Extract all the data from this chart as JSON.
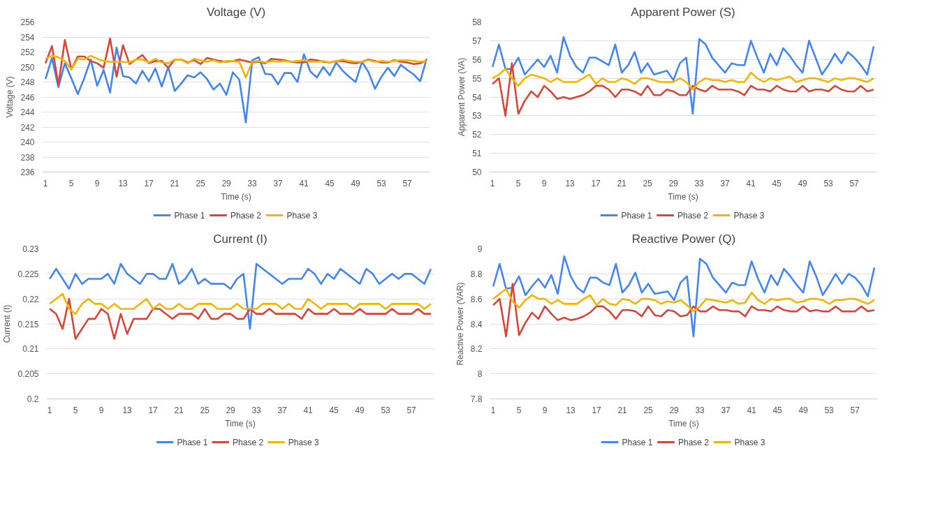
{
  "chart_data": [
    {
      "type": "line",
      "title": "Voltage (V)",
      "xlabel": "Time (s)",
      "ylabel": "Voltage (V)",
      "grid": "y",
      "legend": "bottom",
      "ylim": [
        236,
        256
      ],
      "yticks": [
        236,
        238,
        240,
        242,
        244,
        246,
        248,
        250,
        252,
        254,
        256
      ],
      "categories": [
        "1",
        null,
        null,
        null,
        "5",
        null,
        null,
        null,
        "9",
        null,
        null,
        null,
        "13",
        null,
        null,
        null,
        "17",
        null,
        null,
        null,
        "21",
        null,
        null,
        null,
        "25",
        null,
        null,
        null,
        "29",
        null,
        null,
        null,
        "33",
        null,
        null,
        null,
        "37",
        null,
        null,
        null,
        "41",
        null,
        null,
        null,
        "45",
        null,
        null,
        null,
        "49",
        null,
        null,
        null,
        "53",
        null,
        null,
        null,
        "57",
        null,
        null,
        null
      ],
      "series": [
        {
          "name": "Phase 1",
          "color": "#4285f4",
          "values": [
            248.4,
            251.2,
            247.3,
            250.5,
            248.5,
            246.4,
            248.5,
            251.0,
            247.5,
            249.6,
            246.6,
            252.6,
            248.8,
            248.6,
            247.8,
            249.5,
            248.1,
            249.8,
            247.4,
            250.0,
            246.8,
            247.8,
            248.9,
            248.6,
            249.3,
            248.4,
            247.0,
            247.8,
            246.3,
            249.3,
            248.3,
            242.6,
            250.9,
            251.3,
            249.1,
            249.0,
            247.7,
            249.2,
            249.2,
            248.0,
            251.7,
            249.4,
            248.6,
            250.0,
            248.9,
            250.6,
            249.5,
            248.7,
            248.0,
            250.7,
            249.3,
            247.1,
            248.7,
            249.9,
            248.8,
            250.3,
            249.6,
            249.0,
            248.1,
            251.1
          ]
        },
        {
          "name": "Phase 2",
          "color": "#db4437",
          "values": [
            250.5,
            252.8,
            247.6,
            253.6,
            249.7,
            251.4,
            251.4,
            250.8,
            250.5,
            249.9,
            253.8,
            248.7,
            252.9,
            250.4,
            251.0,
            251.6,
            250.5,
            250.8,
            250.8,
            249.9,
            251.0,
            251.0,
            250.6,
            250.9,
            250.4,
            251.2,
            251.0,
            250.8,
            250.7,
            250.8,
            251.0,
            250.8,
            250.6,
            250.7,
            250.5,
            251.1,
            251.0,
            250.9,
            250.7,
            250.6,
            250.6,
            251.0,
            250.9,
            250.7,
            250.6,
            250.8,
            250.8,
            250.6,
            250.5,
            250.7,
            251.0,
            250.8,
            250.6,
            250.6,
            250.9,
            250.7,
            250.6,
            250.4,
            250.5,
            250.9
          ]
        },
        {
          "name": "Phase 3",
          "color": "#f4b400",
          "values": [
            251.1,
            251.5,
            251.3,
            250.8,
            249.7,
            251.1,
            251.0,
            251.5,
            251.1,
            250.8,
            250.7,
            250.7,
            250.7,
            250.6,
            251.0,
            251.0,
            250.6,
            251.1,
            250.6,
            250.5,
            251.0,
            251.0,
            250.5,
            251.1,
            250.9,
            250.7,
            250.9,
            250.6,
            250.8,
            250.8,
            250.7,
            248.6,
            250.7,
            250.8,
            250.6,
            250.8,
            250.7,
            250.8,
            250.7,
            250.8,
            250.9,
            250.7,
            250.7,
            250.8,
            250.6,
            250.8,
            251.0,
            250.8,
            250.7,
            250.7,
            250.9,
            250.7,
            250.8,
            250.7,
            250.8,
            250.9,
            250.9,
            250.8,
            250.7,
            250.8
          ]
        }
      ]
    },
    {
      "type": "line",
      "title": "Apparent Power (S)",
      "xlabel": "Time (s)",
      "ylabel": "Apparent Power (VA)",
      "grid": "y",
      "legend": "bottom",
      "ylim": [
        50,
        58
      ],
      "yticks": [
        50,
        51,
        52,
        53,
        54,
        55,
        56,
        57,
        58
      ],
      "categories": [
        "1",
        null,
        null,
        null,
        "5",
        null,
        null,
        null,
        "9",
        null,
        null,
        null,
        "13",
        null,
        null,
        null,
        "17",
        null,
        null,
        null,
        "21",
        null,
        null,
        null,
        "25",
        null,
        null,
        null,
        "29",
        null,
        null,
        null,
        "33",
        null,
        null,
        null,
        "37",
        null,
        null,
        null,
        "41",
        null,
        null,
        null,
        "45",
        null,
        null,
        null,
        "49",
        null,
        null,
        null,
        "53",
        null,
        null,
        null,
        "57",
        null,
        null,
        null
      ],
      "series": [
        {
          "name": "Phase 1",
          "color": "#4285f4",
          "values": [
            55.6,
            56.8,
            55.5,
            55.5,
            56.1,
            55.2,
            55.6,
            56.0,
            55.6,
            56.2,
            55.3,
            57.2,
            56.2,
            55.6,
            55.3,
            56.1,
            56.1,
            55.9,
            55.7,
            56.8,
            55.3,
            55.7,
            56.4,
            55.3,
            55.8,
            55.2,
            55.3,
            55.4,
            54.9,
            55.8,
            56.1,
            53.1,
            57.1,
            56.8,
            56.1,
            55.7,
            55.3,
            55.8,
            55.7,
            55.7,
            57.0,
            56.1,
            55.3,
            56.3,
            55.7,
            56.6,
            56.2,
            55.7,
            55.3,
            57.0,
            56.1,
            55.2,
            55.7,
            56.3,
            55.8,
            56.4,
            56.1,
            55.7,
            55.2,
            56.7
          ]
        },
        {
          "name": "Phase 2",
          "color": "#db4437",
          "values": [
            54.7,
            55.0,
            53.0,
            55.8,
            53.1,
            53.8,
            54.3,
            54.0,
            54.6,
            54.3,
            53.9,
            54.0,
            53.9,
            54.0,
            54.1,
            54.3,
            54.6,
            54.6,
            54.4,
            54.0,
            54.4,
            54.4,
            54.3,
            54.1,
            54.6,
            54.1,
            54.1,
            54.4,
            54.3,
            54.1,
            54.1,
            54.6,
            54.4,
            54.3,
            54.6,
            54.4,
            54.4,
            54.4,
            54.3,
            54.1,
            54.6,
            54.4,
            54.4,
            54.3,
            54.6,
            54.4,
            54.3,
            54.3,
            54.6,
            54.3,
            54.4,
            54.4,
            54.3,
            54.6,
            54.4,
            54.3,
            54.3,
            54.6,
            54.3,
            54.4
          ]
        },
        {
          "name": "Phase 3",
          "color": "#f4b400",
          "values": [
            55.0,
            55.2,
            55.5,
            55.0,
            54.6,
            55.0,
            55.2,
            55.1,
            55.0,
            54.8,
            55.0,
            54.8,
            54.8,
            54.8,
            55.0,
            55.2,
            54.7,
            55.0,
            54.8,
            54.8,
            55.0,
            54.9,
            54.7,
            55.0,
            55.0,
            54.9,
            54.8,
            54.8,
            54.8,
            55.0,
            54.8,
            54.4,
            54.8,
            55.0,
            54.9,
            54.9,
            54.8,
            54.9,
            54.8,
            54.8,
            55.3,
            55.0,
            54.8,
            55.0,
            54.9,
            55.0,
            55.1,
            54.8,
            54.9,
            55.0,
            55.0,
            54.9,
            54.8,
            55.0,
            54.9,
            55.0,
            55.0,
            54.9,
            54.8,
            55.0
          ]
        }
      ]
    },
    {
      "type": "line",
      "title": "Current (I)",
      "xlabel": "Time (s)",
      "ylabel": "Current (I)",
      "grid": "y",
      "legend": "bottom",
      "ylim": [
        0.2,
        0.23
      ],
      "yticks": [
        0.2,
        0.205,
        0.21,
        0.215,
        0.22,
        0.225,
        0.23
      ],
      "categories": [
        "1",
        null,
        null,
        null,
        "5",
        null,
        null,
        null,
        "9",
        null,
        null,
        null,
        "13",
        null,
        null,
        null,
        "17",
        null,
        null,
        null,
        "21",
        null,
        null,
        null,
        "25",
        null,
        null,
        null,
        "29",
        null,
        null,
        null,
        "33",
        null,
        null,
        null,
        "37",
        null,
        null,
        null,
        "41",
        null,
        null,
        null,
        "45",
        null,
        null,
        null,
        "49",
        null,
        null,
        null,
        "53",
        null,
        null,
        null,
        "57",
        null,
        null,
        null
      ],
      "series": [
        {
          "name": "Phase 1",
          "color": "#4285f4",
          "values": [
            0.224,
            0.226,
            0.224,
            0.222,
            0.225,
            0.223,
            0.224,
            0.224,
            0.224,
            0.225,
            0.223,
            0.227,
            0.225,
            0.224,
            0.223,
            0.225,
            0.225,
            0.224,
            0.224,
            0.227,
            0.223,
            0.224,
            0.226,
            0.223,
            0.224,
            0.223,
            0.223,
            0.223,
            0.222,
            0.224,
            0.225,
            0.214,
            0.227,
            0.226,
            0.225,
            0.224,
            0.223,
            0.224,
            0.224,
            0.224,
            0.226,
            0.225,
            0.223,
            0.225,
            0.224,
            0.226,
            0.225,
            0.224,
            0.223,
            0.226,
            0.225,
            0.223,
            0.224,
            0.225,
            0.224,
            0.225,
            0.225,
            0.224,
            0.223,
            0.226
          ]
        },
        {
          "name": "Phase 2",
          "color": "#db4437",
          "values": [
            0.218,
            0.217,
            0.214,
            0.22,
            0.212,
            0.214,
            0.216,
            0.216,
            0.218,
            0.217,
            0.212,
            0.217,
            0.213,
            0.216,
            0.216,
            0.216,
            0.218,
            0.218,
            0.217,
            0.216,
            0.217,
            0.217,
            0.217,
            0.216,
            0.218,
            0.216,
            0.216,
            0.217,
            0.217,
            0.216,
            0.216,
            0.218,
            0.217,
            0.217,
            0.218,
            0.217,
            0.217,
            0.217,
            0.217,
            0.216,
            0.218,
            0.217,
            0.217,
            0.217,
            0.218,
            0.217,
            0.217,
            0.217,
            0.218,
            0.217,
            0.217,
            0.217,
            0.217,
            0.218,
            0.217,
            0.217,
            0.217,
            0.218,
            0.217,
            0.217
          ]
        },
        {
          "name": "Phase 3",
          "color": "#f4b400",
          "values": [
            0.219,
            0.22,
            0.221,
            0.218,
            0.217,
            0.219,
            0.22,
            0.219,
            0.219,
            0.218,
            0.219,
            0.218,
            0.218,
            0.218,
            0.219,
            0.22,
            0.218,
            0.219,
            0.218,
            0.218,
            0.219,
            0.218,
            0.218,
            0.219,
            0.219,
            0.219,
            0.218,
            0.218,
            0.218,
            0.219,
            0.218,
            0.218,
            0.218,
            0.219,
            0.219,
            0.219,
            0.218,
            0.219,
            0.218,
            0.218,
            0.22,
            0.219,
            0.218,
            0.219,
            0.219,
            0.219,
            0.219,
            0.218,
            0.219,
            0.219,
            0.219,
            0.219,
            0.218,
            0.219,
            0.219,
            0.219,
            0.219,
            0.219,
            0.218,
            0.219
          ]
        }
      ]
    },
    {
      "type": "line",
      "title": "Reactive Power (Q)",
      "xlabel": "Time (s)",
      "ylabel": "Reactive Power (VAR)",
      "grid": "y",
      "legend": "bottom",
      "ylim": [
        7.8,
        9
      ],
      "yticks": [
        7.8,
        8,
        8.2,
        8.4,
        8.6,
        8.8,
        9
      ],
      "categories": [
        "1",
        null,
        null,
        null,
        "5",
        null,
        null,
        null,
        "9",
        null,
        null,
        null,
        "13",
        null,
        null,
        null,
        "17",
        null,
        null,
        null,
        "21",
        null,
        null,
        null,
        "25",
        null,
        null,
        null,
        "29",
        null,
        null,
        null,
        "33",
        null,
        null,
        null,
        "37",
        null,
        null,
        null,
        "41",
        null,
        null,
        null,
        "45",
        null,
        null,
        null,
        "49",
        null,
        null,
        null,
        "53",
        null,
        null,
        null,
        "57",
        null,
        null,
        null
      ],
      "series": [
        {
          "name": "Phase 1",
          "color": "#4285f4",
          "values": [
            8.7,
            8.88,
            8.68,
            8.69,
            8.78,
            8.63,
            8.7,
            8.76,
            8.69,
            8.79,
            8.64,
            8.94,
            8.78,
            8.69,
            8.65,
            8.77,
            8.77,
            8.73,
            8.71,
            8.88,
            8.65,
            8.71,
            8.81,
            8.65,
            8.72,
            8.64,
            8.65,
            8.66,
            8.59,
            8.73,
            8.78,
            8.3,
            8.92,
            8.88,
            8.77,
            8.71,
            8.65,
            8.73,
            8.71,
            8.71,
            8.9,
            8.76,
            8.65,
            8.79,
            8.71,
            8.84,
            8.78,
            8.71,
            8.65,
            8.9,
            8.78,
            8.63,
            8.71,
            8.8,
            8.72,
            8.8,
            8.77,
            8.71,
            8.62,
            8.85
          ]
        },
        {
          "name": "Phase 2",
          "color": "#db4437",
          "values": [
            8.55,
            8.6,
            8.3,
            8.72,
            8.31,
            8.41,
            8.49,
            8.44,
            8.54,
            8.48,
            8.43,
            8.45,
            8.43,
            8.44,
            8.46,
            8.49,
            8.54,
            8.54,
            8.5,
            8.44,
            8.51,
            8.51,
            8.5,
            8.46,
            8.54,
            8.47,
            8.46,
            8.51,
            8.5,
            8.46,
            8.47,
            8.54,
            8.5,
            8.5,
            8.54,
            8.51,
            8.51,
            8.5,
            8.5,
            8.46,
            8.54,
            8.51,
            8.51,
            8.5,
            8.54,
            8.51,
            8.5,
            8.5,
            8.54,
            8.5,
            8.51,
            8.5,
            8.5,
            8.54,
            8.5,
            8.5,
            8.5,
            8.54,
            8.5,
            8.51
          ]
        },
        {
          "name": "Phase 3",
          "color": "#f4b400",
          "values": [
            8.6,
            8.64,
            8.68,
            8.58,
            8.53,
            8.59,
            8.63,
            8.6,
            8.6,
            8.56,
            8.59,
            8.56,
            8.56,
            8.56,
            8.6,
            8.63,
            8.55,
            8.6,
            8.56,
            8.55,
            8.6,
            8.59,
            8.56,
            8.6,
            8.6,
            8.59,
            8.56,
            8.58,
            8.57,
            8.59,
            8.55,
            8.5,
            8.54,
            8.6,
            8.59,
            8.58,
            8.57,
            8.59,
            8.56,
            8.57,
            8.65,
            8.59,
            8.56,
            8.6,
            8.59,
            8.6,
            8.6,
            8.57,
            8.58,
            8.6,
            8.6,
            8.59,
            8.56,
            8.59,
            8.59,
            8.6,
            8.6,
            8.58,
            8.56,
            8.59
          ]
        }
      ]
    }
  ]
}
